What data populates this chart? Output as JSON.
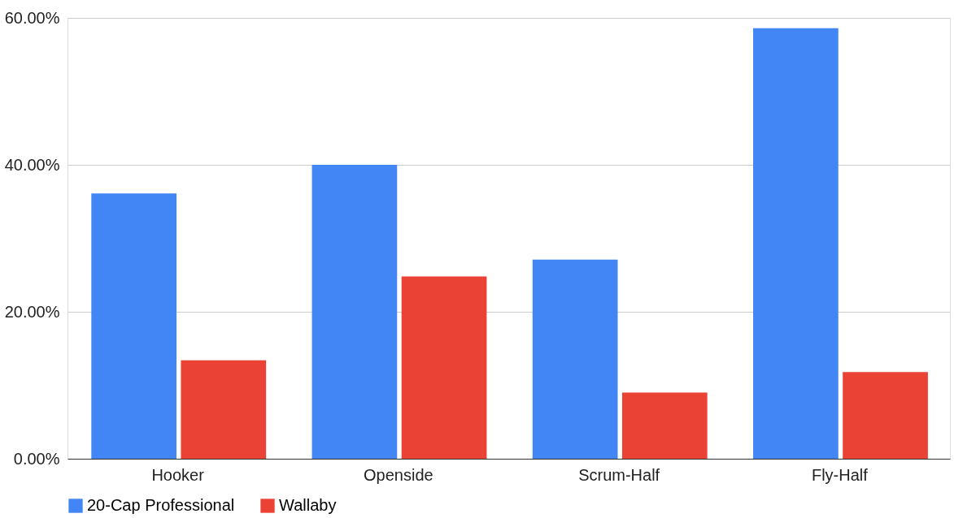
{
  "chart_data": {
    "type": "bar",
    "categories": [
      "Hooker",
      "Openside",
      "Scrum-Half",
      "Fly-Half"
    ],
    "series": [
      {
        "name": "20-Cap Professional",
        "color": "#4285f4",
        "values": [
          36.1,
          40.0,
          27.1,
          58.6
        ]
      },
      {
        "name": "Wallaby",
        "color": "#ea4335",
        "values": [
          13.4,
          24.8,
          9.0,
          11.8
        ]
      }
    ],
    "ylim": [
      0,
      60
    ],
    "yticks": [
      {
        "value": 0,
        "label": "0.00%"
      },
      {
        "value": 20,
        "label": "20.00%"
      },
      {
        "value": 40,
        "label": "40.00%"
      },
      {
        "value": 60,
        "label": "60.00%"
      }
    ],
    "grid": "y",
    "legend": "bottom"
  }
}
